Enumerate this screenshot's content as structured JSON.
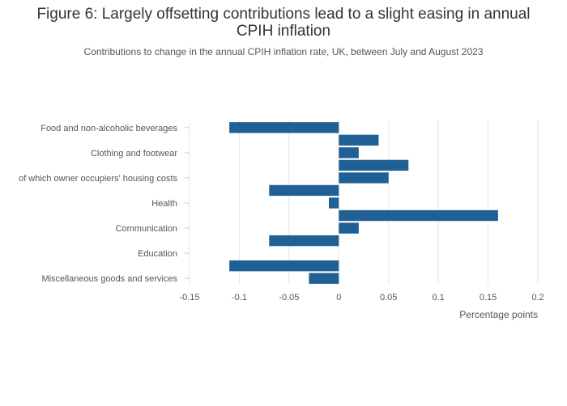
{
  "chart_data": {
    "type": "bar",
    "orientation": "horizontal",
    "title_line1": "Figure 6: Largely offsetting contributions lead to a slight easing in annual",
    "title_line2": "CPIH inflation",
    "subtitle": "Contributions to change in the annual CPIH inflation rate, UK, between July and August 2023",
    "xlabel": "Percentage points",
    "ylabel": "",
    "xlim": [
      -0.15,
      0.2
    ],
    "x_ticks": [
      "-0.15",
      "-0.1",
      "-0.05",
      "0",
      "0.05",
      "0.1",
      "0.15",
      "0.2"
    ],
    "grid": true,
    "bar_color": "#206095",
    "categories": [
      "Food and non-alcoholic beverages",
      "",
      "Clothing and footwear",
      "",
      "of which owner occupiers' housing costs",
      "",
      "Health",
      "",
      "Communication",
      "",
      "Education",
      "",
      "Miscellaneous goods and services"
    ],
    "values": [
      -0.11,
      0.04,
      0.02,
      0.07,
      0.05,
      -0.07,
      -0.01,
      0.16,
      0.02,
      -0.07,
      0.0,
      -0.11,
      -0.03
    ]
  }
}
